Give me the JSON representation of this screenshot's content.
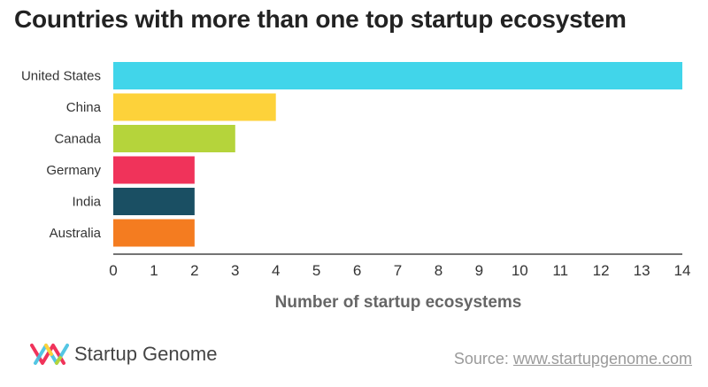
{
  "title": "Countries with more than one top startup ecosystem",
  "brand": {
    "name": "Startup Genome",
    "logo_icon": "startup-genome-logo-icon"
  },
  "source": {
    "label": "Source:",
    "link_text": "www.startupgenome.com"
  },
  "chart_data": {
    "type": "bar",
    "orientation": "horizontal",
    "categories": [
      "United States",
      "China",
      "Canada",
      "Germany",
      "India",
      "Australia"
    ],
    "values": [
      14,
      4,
      3,
      2,
      2,
      2
    ],
    "colors": [
      "#41d5ea",
      "#fdd23a",
      "#b5d43b",
      "#f0335a",
      "#1a4f63",
      "#f47c20"
    ],
    "xlabel": "Number of startup ecosystems",
    "ylabel": "",
    "xlim": [
      0,
      14
    ],
    "xticks": [
      0,
      1,
      2,
      3,
      4,
      5,
      6,
      7,
      8,
      9,
      10,
      11,
      12,
      13,
      14
    ],
    "grid": false
  }
}
